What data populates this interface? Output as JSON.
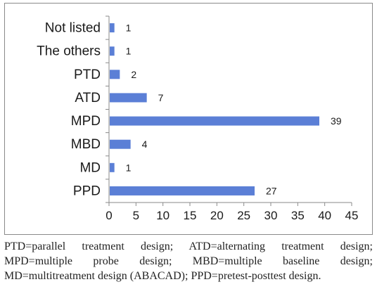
{
  "chart_data": {
    "type": "bar",
    "orientation": "horizontal",
    "categories": [
      "Not listed",
      "The others",
      "PTD",
      "ATD",
      "MPD",
      "MBD",
      "MD",
      "PPD"
    ],
    "values": [
      1,
      1,
      2,
      7,
      39,
      4,
      1,
      27
    ],
    "xticks": [
      "0",
      "5",
      "10",
      "15",
      "20",
      "25",
      "30",
      "35",
      "40",
      "45"
    ],
    "xlim": [
      0,
      45
    ],
    "bar_color": "#5b7fd6",
    "grid": false,
    "legend": "none"
  },
  "caption": "PTD=parallel treatment design; ATD=alternating treatment design; MPD=multiple probe design; MBD=multiple baseline design; MD=multitreatment design (ABACAD); PPD=pretest-posttest design."
}
